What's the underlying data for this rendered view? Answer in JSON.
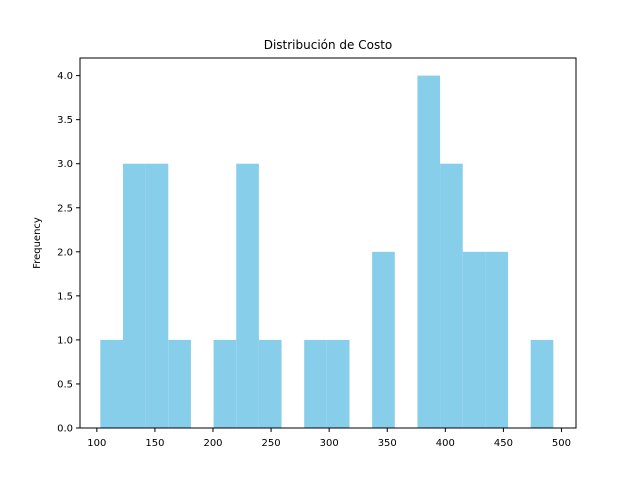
{
  "chart_data": {
    "type": "bar",
    "title": "Distribución de Costo",
    "xlabel": "",
    "ylabel": "Frequency",
    "bar_color": "#87ceeb",
    "xlim": [
      85.5,
      512.5
    ],
    "ylim": [
      0,
      4.2
    ],
    "x_ticks": [
      100,
      150,
      200,
      250,
      300,
      350,
      400,
      450,
      500
    ],
    "y_ticks": [
      0.0,
      0.5,
      1.0,
      1.5,
      2.0,
      2.5,
      3.0,
      3.5,
      4.0
    ],
    "bins": [
      {
        "x0": 103.0,
        "x1": 122.5,
        "count": 1
      },
      {
        "x0": 122.5,
        "x1": 142.0,
        "count": 3
      },
      {
        "x0": 142.0,
        "x1": 161.5,
        "count": 3
      },
      {
        "x0": 161.5,
        "x1": 181.0,
        "count": 1
      },
      {
        "x0": 181.0,
        "x1": 200.5,
        "count": 0
      },
      {
        "x0": 200.5,
        "x1": 220.0,
        "count": 1
      },
      {
        "x0": 220.0,
        "x1": 239.5,
        "count": 3
      },
      {
        "x0": 239.5,
        "x1": 259.0,
        "count": 1
      },
      {
        "x0": 259.0,
        "x1": 278.5,
        "count": 0
      },
      {
        "x0": 278.5,
        "x1": 298.0,
        "count": 1
      },
      {
        "x0": 298.0,
        "x1": 317.5,
        "count": 1
      },
      {
        "x0": 317.5,
        "x1": 337.0,
        "count": 0
      },
      {
        "x0": 337.0,
        "x1": 356.5,
        "count": 2
      },
      {
        "x0": 356.5,
        "x1": 376.0,
        "count": 0
      },
      {
        "x0": 376.0,
        "x1": 395.5,
        "count": 4
      },
      {
        "x0": 395.5,
        "x1": 415.0,
        "count": 3
      },
      {
        "x0": 415.0,
        "x1": 434.5,
        "count": 2
      },
      {
        "x0": 434.5,
        "x1": 454.0,
        "count": 2
      },
      {
        "x0": 454.0,
        "x1": 473.5,
        "count": 0
      },
      {
        "x0": 473.5,
        "x1": 493.0,
        "count": 1
      }
    ]
  }
}
